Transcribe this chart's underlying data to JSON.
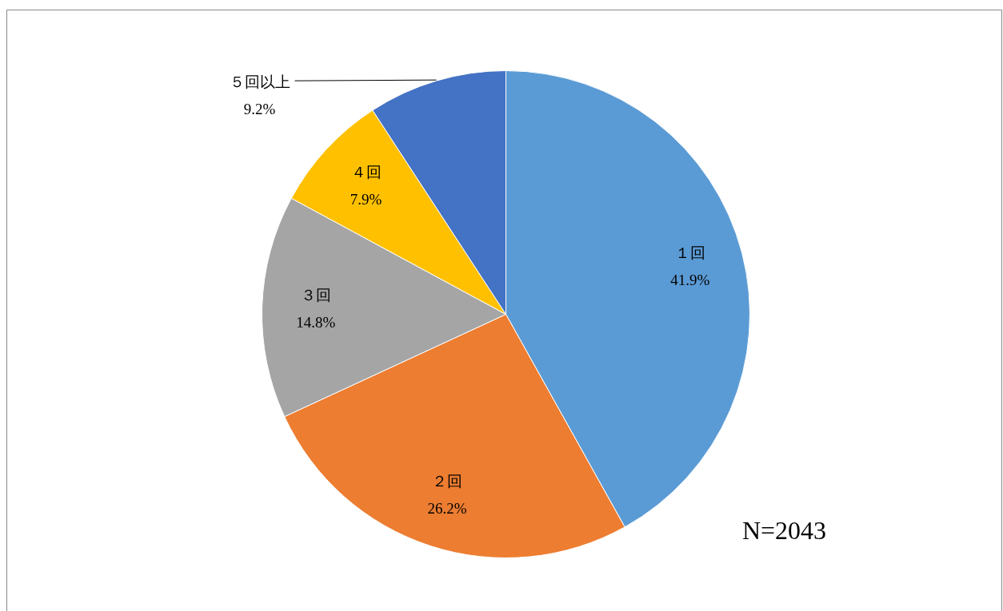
{
  "chart_data": {
    "type": "pie",
    "categories": [
      "１回",
      "２回",
      "３回",
      "４回",
      "５回以上"
    ],
    "values": [
      41.9,
      26.2,
      14.8,
      7.9,
      9.2
    ],
    "value_labels": [
      "41.9%",
      "26.2%",
      "14.8%",
      "7.9%",
      "9.2%"
    ],
    "colors": [
      "#5b9bd5",
      "#ed7d31",
      "#a5a5a5",
      "#ffc000",
      "#4472c4"
    ],
    "annotations": [
      "N=2043"
    ]
  }
}
